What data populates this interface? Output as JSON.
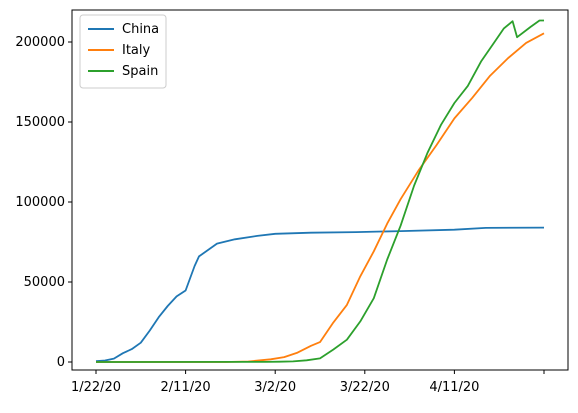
{
  "chart_data": {
    "type": "line",
    "title": "",
    "xlabel": "",
    "ylabel": "",
    "grid": false,
    "legend_position": "upper-left",
    "x_start": "1/22/20",
    "x_end": "5/1/20",
    "x_tick_labels": [
      "1/22/20",
      "2/11/20",
      "3/2/20",
      "3/22/20",
      "4/11/20",
      ""
    ],
    "x_tick_dates": [
      "1/22/20",
      "2/11/20",
      "3/2/20",
      "3/22/20",
      "4/11/20",
      "5/1/20"
    ],
    "ylim": [
      -5000,
      220000
    ],
    "y_ticks": [
      0,
      50000,
      100000,
      150000,
      200000
    ],
    "y_tick_labels": [
      "0",
      "50000",
      "100000",
      "150000",
      "200000"
    ],
    "series": [
      {
        "name": "China",
        "color": "#1f77b4",
        "points": [
          [
            "1/22/20",
            548
          ],
          [
            "1/24/20",
            916
          ],
          [
            "1/26/20",
            2118
          ],
          [
            "1/28/20",
            5508
          ],
          [
            "1/30/20",
            8081
          ],
          [
            "2/1/20",
            12038
          ],
          [
            "2/3/20",
            19693
          ],
          [
            "2/5/20",
            27999
          ],
          [
            "2/7/20",
            35000
          ],
          [
            "2/9/20",
            41000
          ],
          [
            "2/11/20",
            44700
          ],
          [
            "2/13/20",
            60000
          ],
          [
            "2/14/20",
            66000
          ],
          [
            "2/18/20",
            74000
          ],
          [
            "2/22/20",
            76700
          ],
          [
            "2/27/20",
            78800
          ],
          [
            "3/2/20",
            80100
          ],
          [
            "3/10/20",
            80800
          ],
          [
            "3/20/20",
            81200
          ],
          [
            "3/30/20",
            81800
          ],
          [
            "4/11/20",
            82700
          ],
          [
            "4/18/20",
            83800
          ],
          [
            "5/1/20",
            84000
          ]
        ]
      },
      {
        "name": "Italy",
        "color": "#ff7f0e",
        "points": [
          [
            "1/22/20",
            0
          ],
          [
            "2/20/20",
            3
          ],
          [
            "2/25/20",
            322
          ],
          [
            "3/1/20",
            1694
          ],
          [
            "3/4/20",
            3089
          ],
          [
            "3/7/20",
            5883
          ],
          [
            "3/10/20",
            10149
          ],
          [
            "3/12/20",
            12462
          ],
          [
            "3/15/20",
            24747
          ],
          [
            "3/18/20",
            35713
          ],
          [
            "3/21/20",
            53578
          ],
          [
            "3/24/20",
            69176
          ],
          [
            "3/27/20",
            86498
          ],
          [
            "3/30/20",
            101739
          ],
          [
            "4/3/20",
            119827
          ],
          [
            "4/7/20",
            135586
          ],
          [
            "4/11/20",
            152271
          ],
          [
            "4/15/20",
            165155
          ],
          [
            "4/19/20",
            178972
          ],
          [
            "4/23/20",
            189973
          ],
          [
            "4/27/20",
            199414
          ],
          [
            "5/1/20",
            205463
          ]
        ]
      },
      {
        "name": "Spain",
        "color": "#2ca02c",
        "points": [
          [
            "1/22/20",
            0
          ],
          [
            "2/29/20",
            45
          ],
          [
            "3/3/20",
            165
          ],
          [
            "3/6/20",
            400
          ],
          [
            "3/9/20",
            1073
          ],
          [
            "3/12/20",
            2277
          ],
          [
            "3/15/20",
            7798
          ],
          [
            "3/18/20",
            13910
          ],
          [
            "3/21/20",
            25374
          ],
          [
            "3/24/20",
            39885
          ],
          [
            "3/27/20",
            64059
          ],
          [
            "3/30/20",
            85195
          ],
          [
            "4/2/20",
            110238
          ],
          [
            "4/5/20",
            130759
          ],
          [
            "4/8/20",
            148220
          ],
          [
            "4/11/20",
            161852
          ],
          [
            "4/14/20",
            172541
          ],
          [
            "4/17/20",
            188068
          ],
          [
            "4/20/20",
            200210
          ],
          [
            "4/22/20",
            208389
          ],
          [
            "4/24/20",
            213024
          ],
          [
            "4/25/20",
            202990
          ],
          [
            "4/28/20",
            209465
          ],
          [
            "4/30/20",
            213435
          ],
          [
            "5/1/20",
            213435
          ]
        ]
      }
    ]
  }
}
